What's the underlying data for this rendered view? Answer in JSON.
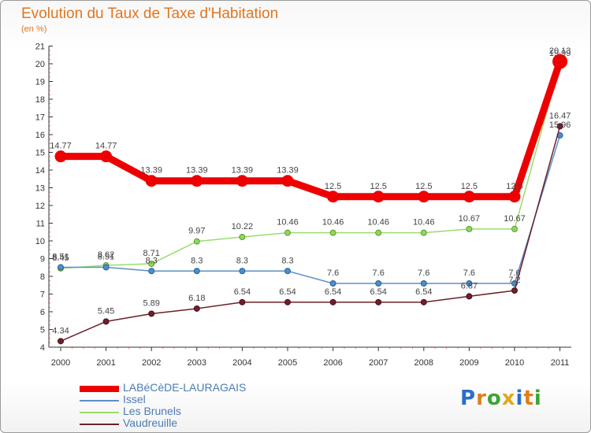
{
  "title": "Evolution du Taux de Taxe d'Habitation",
  "unit": "(en %)",
  "brand": "Proxiti",
  "chart_data": {
    "type": "line",
    "ylim": [
      4,
      21
    ],
    "yticks": [
      "4",
      "5",
      "6",
      "7",
      "8",
      "9",
      "10",
      "11",
      "12",
      "13",
      "14",
      "15",
      "16",
      "17",
      "18",
      "19",
      "20",
      "21"
    ],
    "categories": [
      "2000",
      "2001",
      "2002",
      "2003",
      "2004",
      "2005",
      "2006",
      "2007",
      "2008",
      "2009",
      "2010",
      "2011"
    ],
    "grid": false,
    "legend_position": "bottom-left",
    "series": [
      {
        "name": "LABéCèDE-LAURAGAIS",
        "color": "#ee0000",
        "values": [
          14.77,
          14.77,
          13.39,
          13.39,
          13.39,
          13.39,
          12.5,
          12.5,
          12.5,
          12.5,
          12.5,
          20.13
        ],
        "labels": [
          "14.77",
          "14.77",
          "13.39",
          "13.39",
          "13.39",
          "13.39",
          "12.5",
          "12.5",
          "12.5",
          "12.5",
          "12.5",
          "20.13"
        ]
      },
      {
        "name": "Issel",
        "color": "#5b8fc6",
        "values": [
          8.51,
          8.51,
          8.3,
          8.3,
          8.3,
          8.3,
          7.6,
          7.6,
          7.6,
          7.6,
          7.6,
          15.96
        ],
        "labels": [
          "8.51",
          "8.51",
          "8.3",
          "8.3",
          "8.3",
          "8.3",
          "7.6",
          "7.6",
          "7.6",
          "7.6",
          "7.6",
          "15.96"
        ]
      },
      {
        "name": "Les Brunels",
        "color": "#9bdc6e",
        "values": [
          8.45,
          8.62,
          8.71,
          9.97,
          10.22,
          10.46,
          10.46,
          10.46,
          10.46,
          10.67,
          10.67,
          19.99
        ],
        "labels": [
          "8.45",
          "8.62",
          "8.71",
          "9.97",
          "10.22",
          "10.46",
          "10.46",
          "10.46",
          "10.46",
          "10.67",
          "10.67",
          "19.99"
        ]
      },
      {
        "name": "Vaudreuille",
        "color": "#6e2028",
        "values": [
          4.34,
          5.45,
          5.89,
          6.18,
          6.54,
          6.54,
          6.54,
          6.54,
          6.54,
          6.87,
          7.2,
          16.47
        ],
        "labels": [
          "4.34",
          "5.45",
          "5.89",
          "6.18",
          "6.54",
          "6.54",
          "6.54",
          "6.54",
          "6.54",
          "6.87",
          "7.2",
          "16.47"
        ]
      }
    ]
  }
}
